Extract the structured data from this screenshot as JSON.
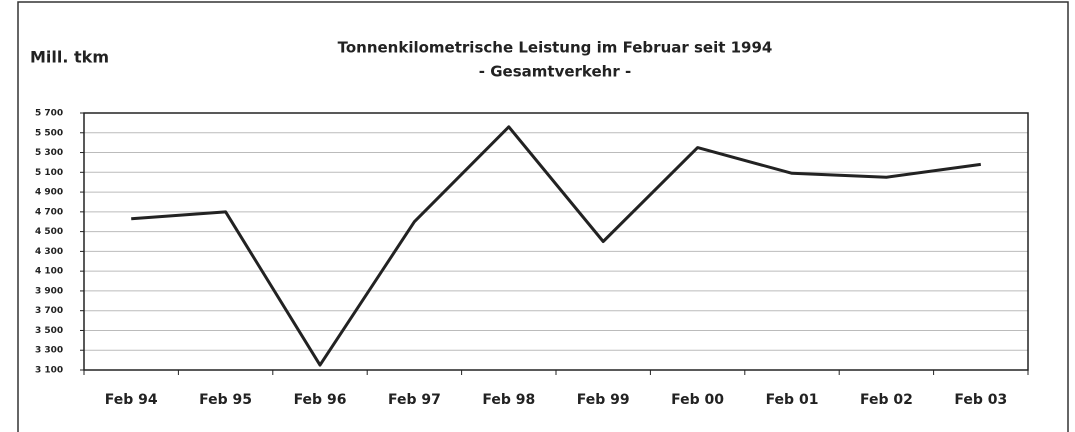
{
  "chart_data": {
    "type": "line",
    "title": "Tonnenkilometrische Leistung im Februar seit 1994",
    "subtitle": "- Gesamtverkehr -",
    "y_label": "Mill. tkm",
    "categories": [
      "Feb 94",
      "Feb 95",
      "Feb 96",
      "Feb 97",
      "Feb 98",
      "Feb 99",
      "Feb 00",
      "Feb 01",
      "Feb 02",
      "Feb 03"
    ],
    "values": [
      4630,
      4700,
      3150,
      4600,
      5560,
      4400,
      5350,
      5090,
      5050,
      5180
    ],
    "color": "#222222",
    "ylim": [
      3100,
      5700
    ],
    "yticks": [
      {
        "value": 3100,
        "label": "3 100"
      },
      {
        "value": 3300,
        "label": "3 300"
      },
      {
        "value": 3500,
        "label": "3 500"
      },
      {
        "value": 3700,
        "label": "3 700"
      },
      {
        "value": 3900,
        "label": "3 900"
      },
      {
        "value": 4100,
        "label": "4 100"
      },
      {
        "value": 4300,
        "label": "4 300"
      },
      {
        "value": 4500,
        "label": "4 500"
      },
      {
        "value": 4700,
        "label": "4 700"
      },
      {
        "value": 4900,
        "label": "4 900"
      },
      {
        "value": 5100,
        "label": "5 100"
      },
      {
        "value": 5300,
        "label": "5 300"
      },
      {
        "value": 5500,
        "label": "5 500"
      },
      {
        "value": 5700,
        "label": "5 700"
      }
    ],
    "grid": true
  }
}
